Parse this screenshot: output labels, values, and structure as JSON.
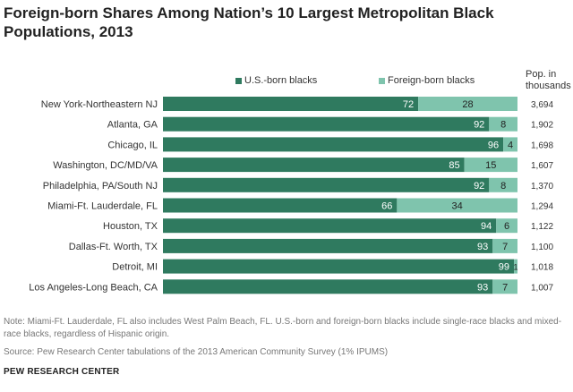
{
  "chart_data": {
    "type": "bar",
    "stacked": true,
    "orientation": "horizontal",
    "title": "Foreign-born Shares Among Nation’s 10 Largest Metropolitan Black Populations, 2013",
    "categories": [
      "New York-Northeastern NJ",
      "Atlanta, GA",
      "Chicago, IL",
      "Washington, DC/MD/VA",
      "Philadelphia, PA/South NJ",
      "Miami-Ft. Lauderdale, FL",
      "Houston, TX",
      "Dallas-Ft. Worth, TX",
      "Detroit, MI",
      "Los Angeles-Long Beach, CA"
    ],
    "series": [
      {
        "name": "U.S.-born blacks",
        "color": "#2f7a5f",
        "values": [
          72,
          92,
          96,
          85,
          92,
          66,
          94,
          93,
          99,
          93
        ]
      },
      {
        "name": "Foreign-born blacks",
        "color": "#7fc4ad",
        "values": [
          28,
          8,
          4,
          15,
          8,
          34,
          6,
          7,
          1,
          7
        ]
      }
    ],
    "extra_column": {
      "header_line1": "Pop. in",
      "header_line2": "thousands",
      "values": [
        "3,694",
        "1,902",
        "1,698",
        "1,607",
        "1,370",
        "1,294",
        "1,122",
        "1,100",
        "1,018",
        "1,007"
      ]
    },
    "xlim": [
      0,
      100
    ],
    "legend_position": "top"
  },
  "footer": {
    "note": "Note: Miami-Ft. Lauderdale, FL also includes West Palm Beach, FL. U.S.-born and foreign-born blacks include single-race blacks and mixed-race blacks, regardless of Hispanic origin.",
    "source": "Source: Pew Research Center tabulations of the 2013 American Community Survey (1% IPUMS)",
    "brand": "PEW RESEARCH CENTER"
  }
}
